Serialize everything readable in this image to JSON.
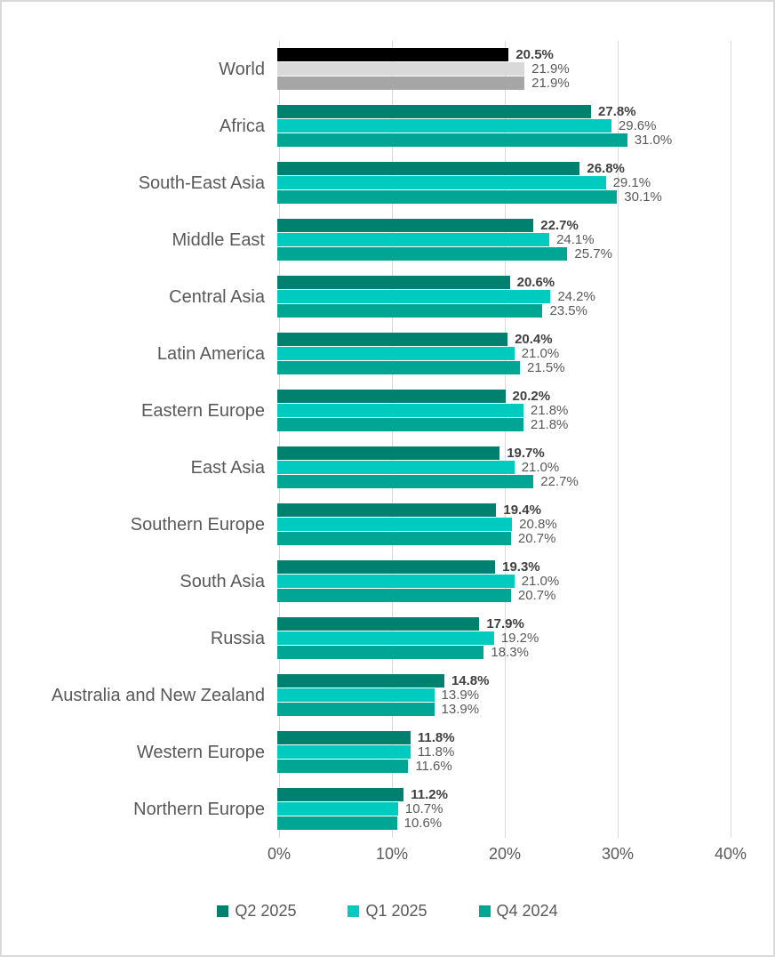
{
  "chart_data": {
    "type": "bar",
    "orientation": "horizontal",
    "title": "",
    "xlabel": "",
    "ylabel": "",
    "xlim": [
      0,
      40
    ],
    "x_ticks": [
      "0%",
      "10%",
      "20%",
      "30%",
      "40%"
    ],
    "x_tick_values": [
      0,
      10,
      20,
      30,
      40
    ],
    "grid": "vertical",
    "value_suffix": "%",
    "legend_position": "bottom",
    "categories": [
      "World",
      "Africa",
      "South-East Asia",
      "Middle East",
      "Central Asia",
      "Latin America",
      "Eastern Europe",
      "East Asia",
      "Southern Europe",
      "South Asia",
      "Russia",
      "Australia and New Zealand",
      "Western Europe",
      "Northern Europe"
    ],
    "series": [
      {
        "name": "Q2 2025",
        "color": "#008170",
        "values": [
          20.5,
          27.8,
          26.8,
          22.7,
          20.6,
          20.4,
          20.2,
          19.7,
          19.4,
          19.3,
          17.9,
          14.8,
          11.8,
          11.2
        ]
      },
      {
        "name": "Q1 2025",
        "color": "#00CBBE",
        "values": [
          21.9,
          29.6,
          29.1,
          24.1,
          24.2,
          21.0,
          21.8,
          21.0,
          20.8,
          21.0,
          19.2,
          13.9,
          11.8,
          10.7
        ]
      },
      {
        "name": "Q4 2024",
        "color": "#00A693",
        "values": [
          21.9,
          31.0,
          30.1,
          25.7,
          23.5,
          21.5,
          21.8,
          22.7,
          20.7,
          20.7,
          18.3,
          13.9,
          11.6,
          10.6
        ]
      }
    ],
    "highlight_category": "World",
    "highlight_colors": [
      "#000000",
      "#D9D9D9",
      "#A6A6A6"
    ],
    "styles": {
      "gridline_color": "#D9D9D9",
      "category_label_color": "#595959",
      "value_label_color": "#595959",
      "value_label_bold_color": "#404040",
      "axis_tick_color": "#595959"
    }
  }
}
